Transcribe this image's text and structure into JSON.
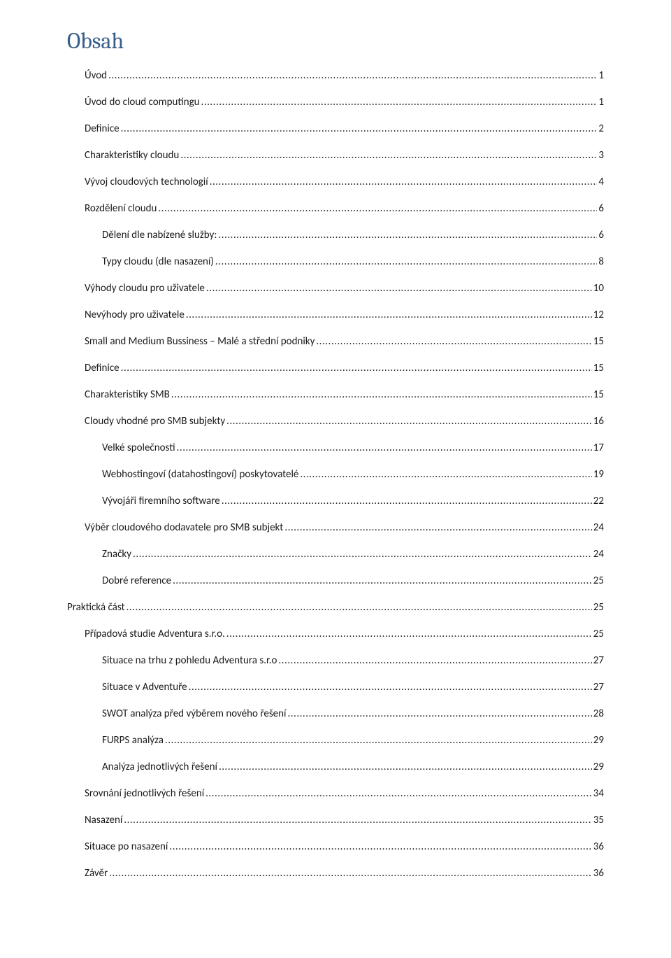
{
  "title": "Obsah",
  "colors": {
    "title_color": "#385d8a",
    "text_color": "#1a1a1a",
    "background_color": "#ffffff"
  },
  "typography": {
    "title_fontsize": 32,
    "entry_fontsize": 15,
    "title_font": "Cambria",
    "body_font": "Calibri"
  },
  "entries": [
    {
      "label": "Úvod",
      "page": "1",
      "indent": 1
    },
    {
      "label": "Úvod do cloud computingu",
      "page": "1",
      "indent": 1
    },
    {
      "label": "Definice",
      "page": "2",
      "indent": 1
    },
    {
      "label": "Charakteristiky cloudu",
      "page": "3",
      "indent": 1
    },
    {
      "label": "Vývoj cloudových technologií",
      "page": "4",
      "indent": 1
    },
    {
      "label": "Rozdělení cloudu",
      "page": "6",
      "indent": 1
    },
    {
      "label": "Dělení dle nabízené služby:",
      "page": "6",
      "indent": 2
    },
    {
      "label": "Typy cloudu (dle nasazení)",
      "page": "8",
      "indent": 2
    },
    {
      "label": "Výhody cloudu pro uživatele",
      "page": "10",
      "indent": 1
    },
    {
      "label": "Nevýhody pro uživatele",
      "page": "12",
      "indent": 1
    },
    {
      "label": "Small and Medium Bussiness – Malé a střední podniky",
      "page": "15",
      "indent": 1
    },
    {
      "label": "Definice",
      "page": "15",
      "indent": 1
    },
    {
      "label": "Charakteristiky SMB",
      "page": "15",
      "indent": 1
    },
    {
      "label": "Cloudy vhodné pro SMB subjekty",
      "page": "16",
      "indent": 1
    },
    {
      "label": "Velké společnosti",
      "page": "17",
      "indent": 2
    },
    {
      "label": "Webhostingoví (datahostingoví) poskytovatelé",
      "page": "19",
      "indent": 2
    },
    {
      "label": "Vývojáři firemního software",
      "page": "22",
      "indent": 2
    },
    {
      "label": "Výběr cloudového dodavatele pro SMB subjekt",
      "page": "24",
      "indent": 1
    },
    {
      "label": "Značky",
      "page": "24",
      "indent": 2
    },
    {
      "label": "Dobré reference",
      "page": "25",
      "indent": 2
    },
    {
      "label": "Praktická část",
      "page": "25",
      "indent": 0
    },
    {
      "label": "Případová studie Adventura s.r.o.",
      "page": "25",
      "indent": 1
    },
    {
      "label": "Situace na trhu z pohledu Adventura s.r.o",
      "page": "27",
      "indent": 2
    },
    {
      "label": "Situace v Adventuře",
      "page": "27",
      "indent": 2
    },
    {
      "label": "SWOT analýza před výběrem nového řešení",
      "page": "28",
      "indent": 2
    },
    {
      "label": "FURPS analýza",
      "page": "29",
      "indent": 2
    },
    {
      "label": "Analýza jednotlivých řešení",
      "page": "29",
      "indent": 2
    },
    {
      "label": "Srovnání jednotlivých řešení",
      "page": "34",
      "indent": 1
    },
    {
      "label": "Nasazení",
      "page": "35",
      "indent": 1
    },
    {
      "label": "Situace po nasazení",
      "page": "36",
      "indent": 1
    },
    {
      "label": "Závěr",
      "page": "36",
      "indent": 1
    }
  ]
}
